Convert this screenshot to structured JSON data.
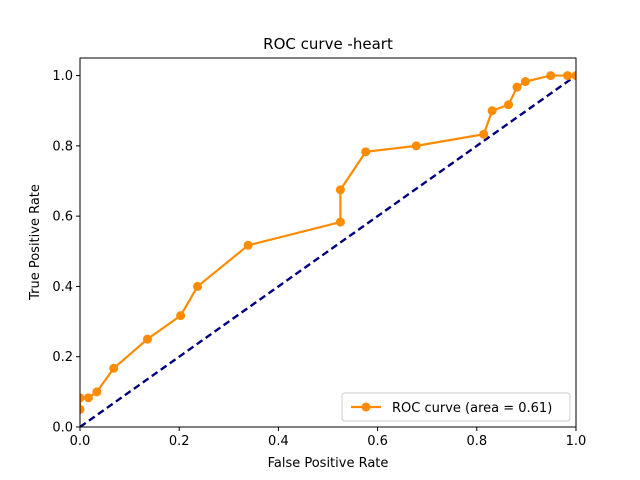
{
  "chart_data": {
    "type": "line",
    "title": "ROC curve -heart",
    "xlabel": "False Positive Rate",
    "ylabel": "True Positive Rate",
    "xlim": [
      0.0,
      1.0
    ],
    "ylim": [
      0.0,
      1.05
    ],
    "xticks": [
      "0.0",
      "0.2",
      "0.4",
      "0.6",
      "0.8",
      "1.0"
    ],
    "yticks": [
      "0.0",
      "0.2",
      "0.4",
      "0.6",
      "0.8",
      "1.0"
    ],
    "grid": false,
    "legend_position": "lower-right",
    "series": [
      {
        "name": "ROC curve (area = 0.61)",
        "color": "#ff8c00",
        "marker": "circle",
        "x": [
          0.0,
          0.0,
          0.017,
          0.034,
          0.068,
          0.136,
          0.203,
          0.237,
          0.339,
          0.525,
          0.525,
          0.576,
          0.678,
          0.814,
          0.831,
          0.864,
          0.881,
          0.898,
          0.949,
          0.983,
          1.0
        ],
        "y": [
          0.05,
          0.083,
          0.083,
          0.1,
          0.167,
          0.25,
          0.317,
          0.4,
          0.517,
          0.583,
          0.675,
          0.783,
          0.8,
          0.833,
          0.9,
          0.917,
          0.967,
          0.983,
          1.0,
          1.0,
          1.0
        ]
      }
    ],
    "reference_line": {
      "color": "#000080",
      "style": "dashed",
      "x": [
        0,
        1
      ],
      "y": [
        0,
        1
      ]
    }
  }
}
